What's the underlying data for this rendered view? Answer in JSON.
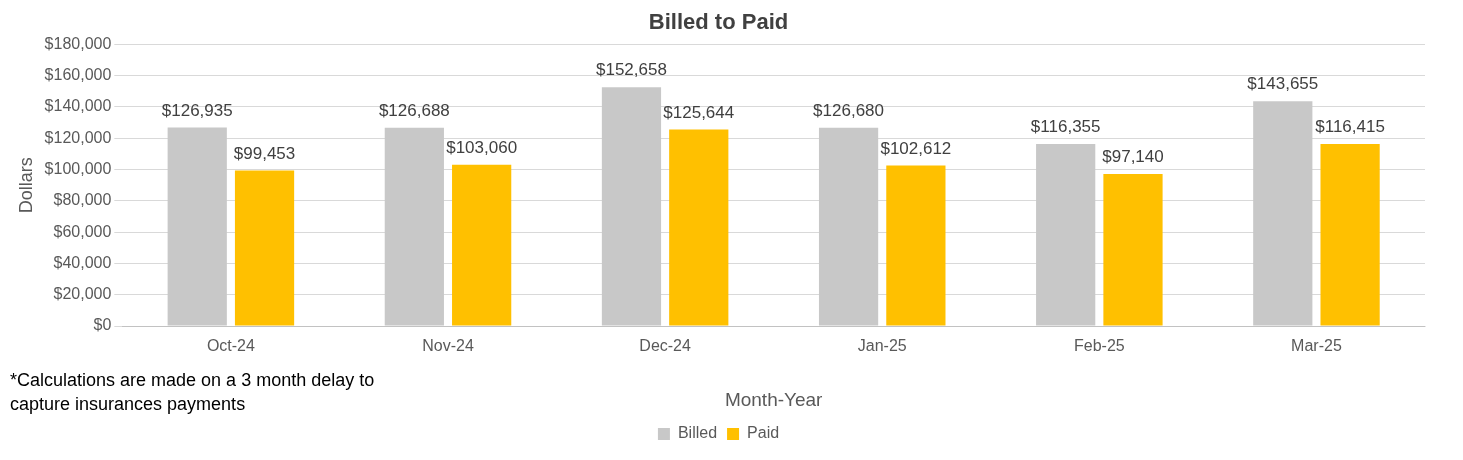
{
  "chart_data": {
    "type": "bar",
    "title": "Billed to Paid",
    "xlabel": "Month-Year",
    "ylabel": "Dollars",
    "categories": [
      "Oct-24",
      "Nov-24",
      "Dec-24",
      "Jan-25",
      "Feb-25",
      "Mar-25"
    ],
    "series": [
      {
        "name": "Billed",
        "color": "#c8c8c8",
        "values": [
          126935,
          126688,
          152658,
          126680,
          116355,
          143655
        ],
        "value_labels": [
          "$126,935",
          "$126,688",
          "$152,658",
          "$126,680",
          "$116,355",
          "$143,655"
        ]
      },
      {
        "name": "Paid",
        "color": "#ffc000",
        "values": [
          99453,
          103060,
          125644,
          102612,
          97140,
          116415
        ],
        "value_labels": [
          "$99,453",
          "$103,060",
          "$125,644",
          "$102,612",
          "$97,140",
          "$116,415"
        ]
      }
    ],
    "ylim": [
      0,
      180000
    ],
    "yticks": [
      {
        "value": 0,
        "label": "$0"
      },
      {
        "value": 20000,
        "label": "$20,000"
      },
      {
        "value": 40000,
        "label": "$40,000"
      },
      {
        "value": 60000,
        "label": "$60,000"
      },
      {
        "value": 80000,
        "label": "$80,000"
      },
      {
        "value": 100000,
        "label": "$100,000"
      },
      {
        "value": 120000,
        "label": "$120,000"
      },
      {
        "value": 140000,
        "label": "$140,000"
      },
      {
        "value": 160000,
        "label": "$160,000"
      },
      {
        "value": 180000,
        "label": "$180,000"
      }
    ],
    "grid": "y",
    "legend": "bottom",
    "annotations": [
      "*Calculations are made on a 3 month delay to capture insurances payments"
    ]
  }
}
